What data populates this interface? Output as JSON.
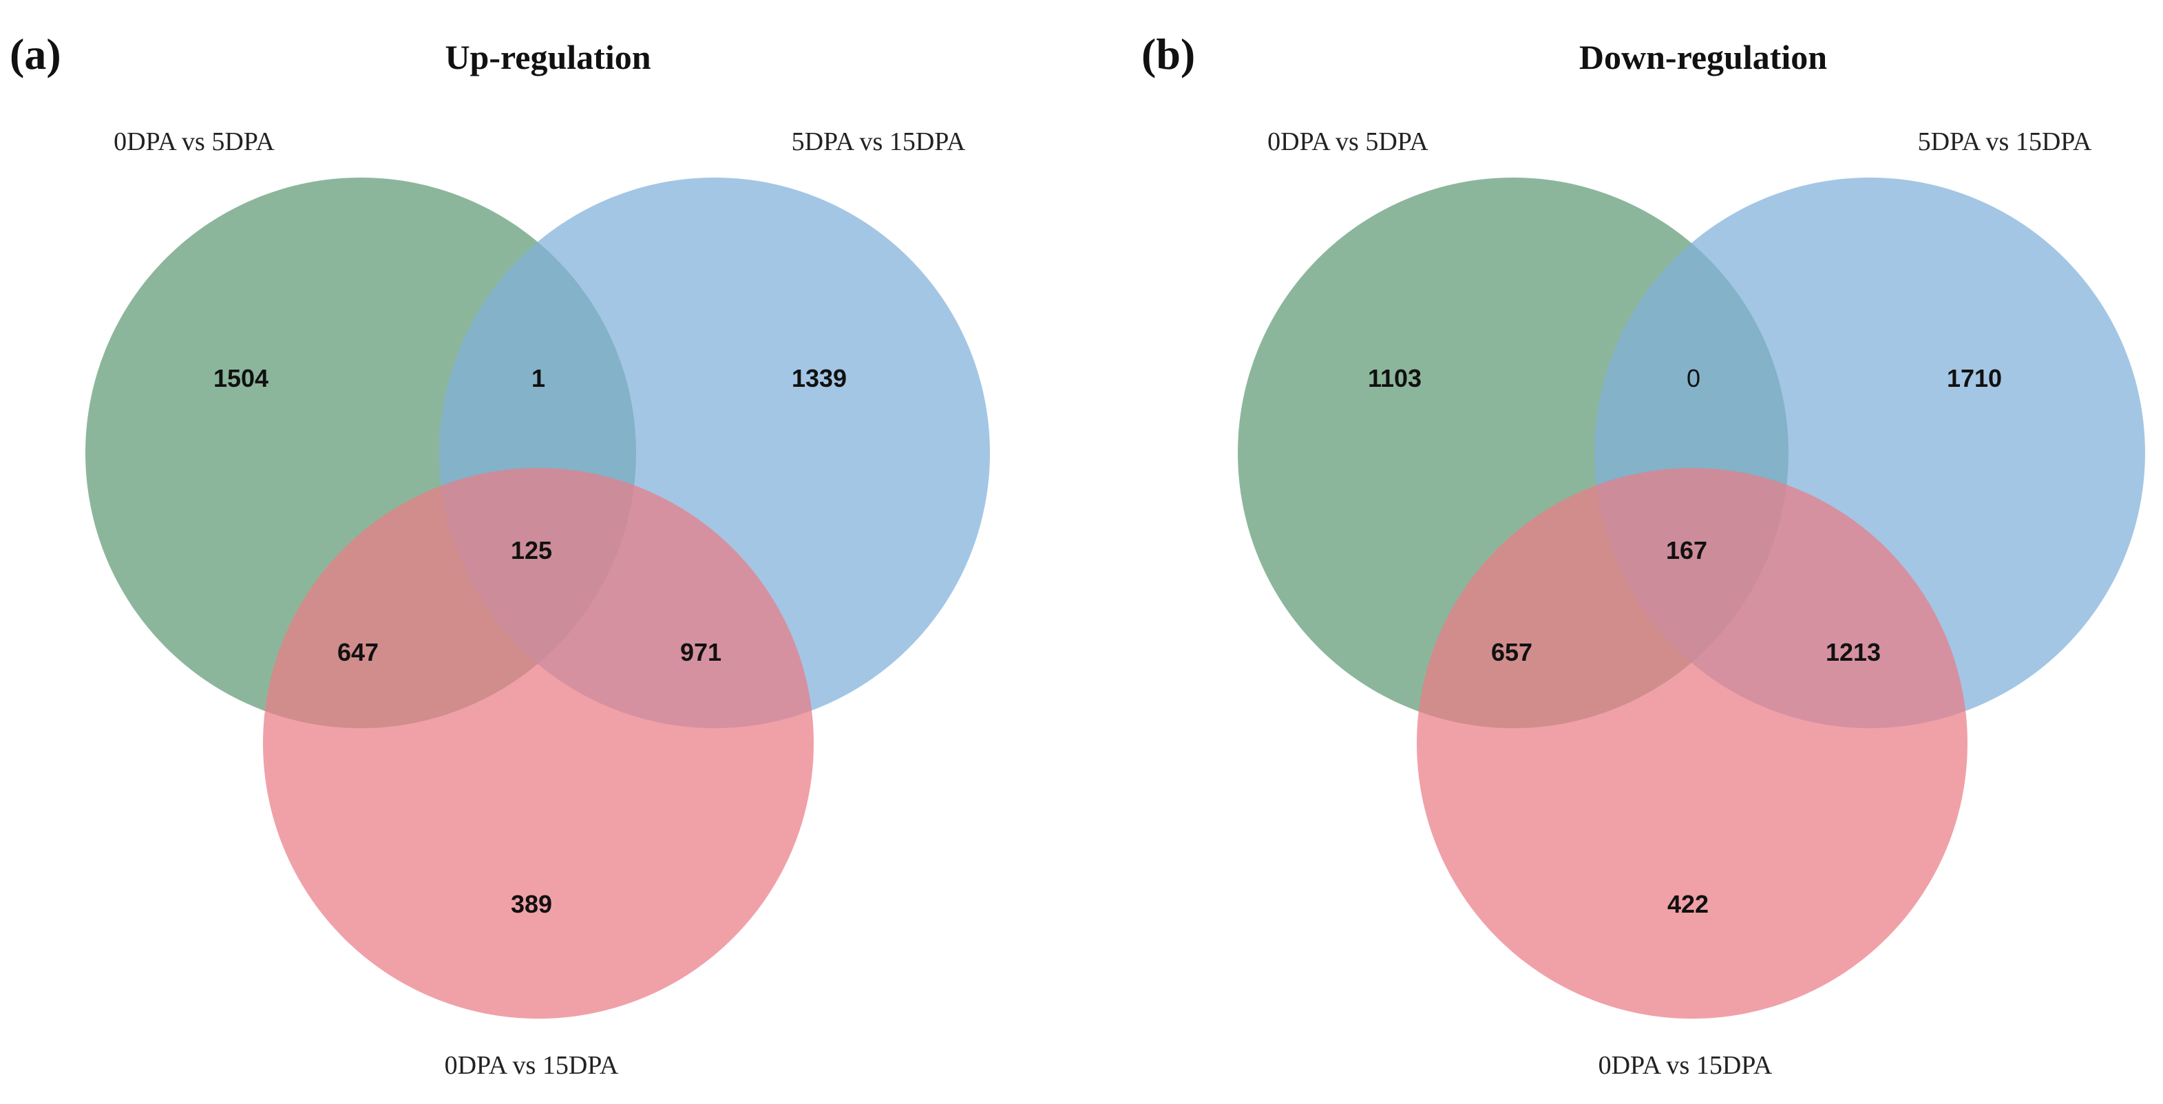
{
  "colors": {
    "set_a": "#5f9a74",
    "set_b": "#7fb0db",
    "set_c": "#ea7d86",
    "opacity": 0.72
  },
  "panels": [
    {
      "letter": "(a)",
      "title": "Up-regulation",
      "sets": {
        "a": "0DPA vs 5DPA",
        "b": "5DPA vs 15DPA",
        "c": "0DPA vs 15DPA"
      },
      "counts": {
        "a_only": "1504",
        "b_only": "1339",
        "c_only": "389",
        "ab_only": "1",
        "ac_only": "647",
        "bc_only": "971",
        "abc": "125"
      }
    },
    {
      "letter": "(b)",
      "title": "Down-regulation",
      "sets": {
        "a": "0DPA vs 5DPA",
        "b": "5DPA vs 15DPA",
        "c": "0DPA vs 15DPA"
      },
      "counts": {
        "a_only": "1103",
        "b_only": "1710",
        "c_only": "422",
        "ab_only": "0",
        "ac_only": "657",
        "bc_only": "1213",
        "abc": "167"
      }
    }
  ]
}
